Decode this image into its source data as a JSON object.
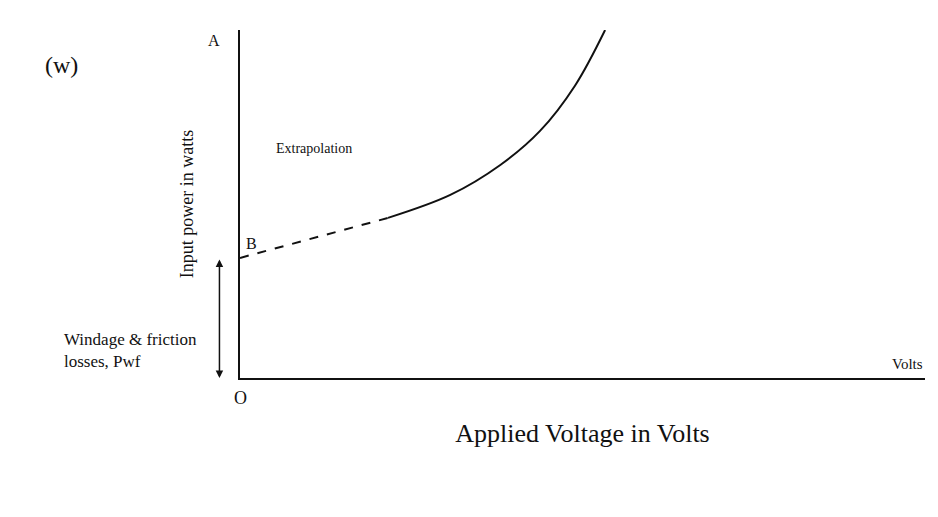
{
  "chart_data": {
    "type": "line",
    "x_label": "Applied Voltage in Volts",
    "y_label": "Input power in watts",
    "xlim": [
      0,
      100
    ],
    "ylim": [
      0,
      100
    ],
    "xticks": [],
    "yticks": [],
    "tick_labels": false,
    "grid": false,
    "color": "#111111",
    "series": [
      {
        "x": [
          21.6,
          30.7,
          38,
          43.8,
          48.9,
          53.3
        ],
        "values": [
          46,
          52.6,
          61.2,
          71,
          84,
          100
        ],
        "line_style": "solid"
      },
      {
        "x": [
          0,
          21.6
        ],
        "values": [
          34.5,
          46
        ],
        "line_style": "dashed"
      }
    ],
    "annotations": {
      "panel": "(w)",
      "top_point": "A",
      "intercept": "B",
      "origin": "O",
      "x_end": "Volts",
      "curve_note": "Extrapolation",
      "intercept_note": "Windage & friction losses, Pwf"
    }
  }
}
